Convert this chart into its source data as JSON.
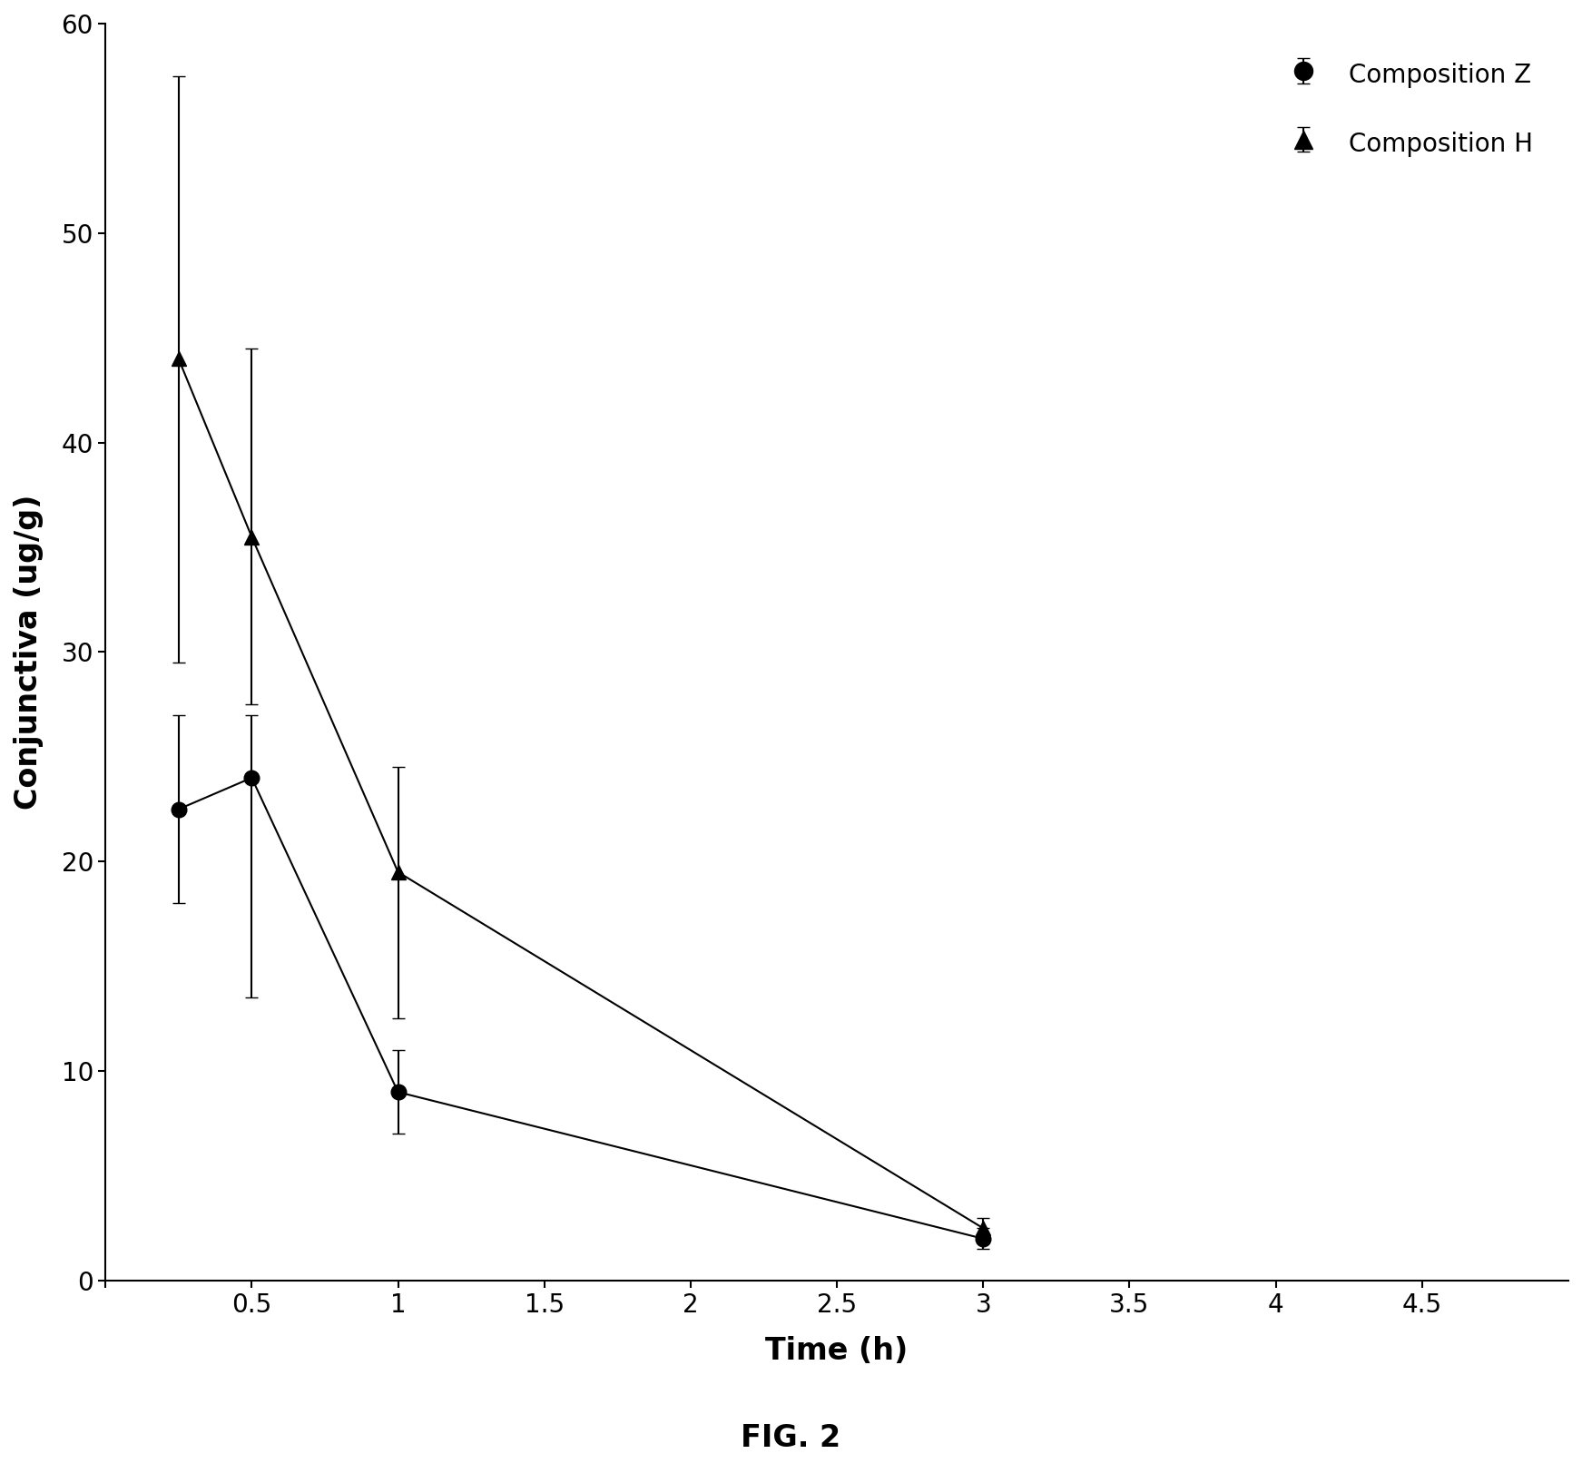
{
  "title": "FIG. 2",
  "ylabel": "Conjunctiva (ug/g)",
  "xlabel": "Time (h)",
  "ylim": [
    0,
    60
  ],
  "xlim": [
    0.0,
    5.0
  ],
  "xticks": [
    0,
    0.5,
    1.0,
    1.5,
    2.0,
    2.5,
    3.0,
    3.5,
    4.0,
    4.5
  ],
  "yticks": [
    0,
    10,
    20,
    30,
    40,
    50,
    60
  ],
  "comp_z": {
    "x": [
      0.25,
      0.5,
      1.0,
      3.0
    ],
    "y": [
      22.5,
      24.0,
      9.0,
      2.0
    ],
    "yerr_lo": [
      4.5,
      10.5,
      2.0,
      0.5
    ],
    "yerr_hi": [
      4.5,
      3.0,
      2.0,
      0.5
    ],
    "label": "Composition Z",
    "marker": "o",
    "color": "black"
  },
  "comp_h": {
    "x": [
      0.25,
      0.5,
      1.0,
      3.0
    ],
    "y": [
      44.0,
      35.5,
      19.5,
      2.5
    ],
    "yerr_lo": [
      14.5,
      8.0,
      7.0,
      0.5
    ],
    "yerr_hi": [
      13.5,
      9.0,
      5.0,
      0.5
    ],
    "label": "Composition H",
    "marker": "^",
    "color": "black"
  },
  "background_color": "#ffffff",
  "linewidth": 1.5,
  "markersize": 12,
  "capsize": 5,
  "elinewidth": 1.5,
  "legend_fontsize": 20,
  "axis_label_fontsize": 24,
  "tick_fontsize": 20,
  "title_fontsize": 24
}
